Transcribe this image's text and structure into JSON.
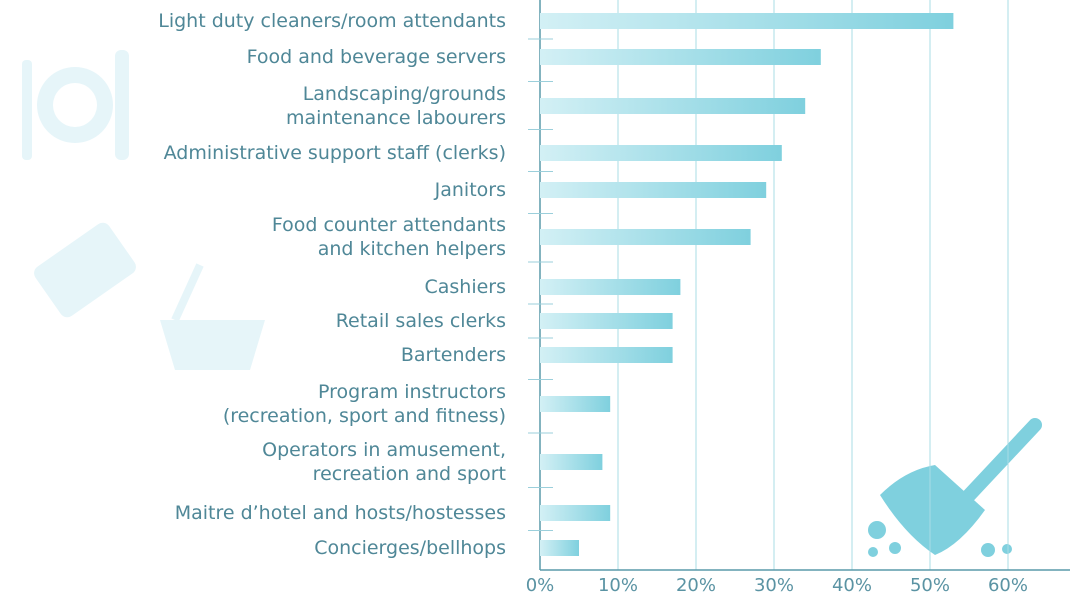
{
  "chart_data": {
    "type": "bar",
    "orientation": "horizontal",
    "categories": [
      "Light duty cleaners/room attendants",
      "Food and beverage servers",
      "Landscaping/grounds\nmaintenance labourers",
      "Administrative support staff (clerks)",
      "Janitors",
      "Food counter attendants\nand kitchen helpers",
      "Cashiers",
      "Retail sales clerks",
      "Bartenders",
      "Program instructors\n(recreation, sport and fitness)",
      "Operators in amusement,\nrecreation and sport",
      "Maitre d’hotel and hosts/hostesses",
      "Concierges/bellhops"
    ],
    "values": [
      53,
      36,
      34,
      31,
      29,
      27,
      18,
      17,
      17,
      9,
      8,
      9,
      5
    ],
    "color": "#7fd0de",
    "xlim": [
      0,
      68
    ],
    "xticks": [
      {
        "value": 0,
        "label": "0%"
      },
      {
        "value": 10,
        "label": "10%"
      },
      {
        "value": 20,
        "label": "20%"
      },
      {
        "value": 30,
        "label": "30%"
      },
      {
        "value": 40,
        "label": "40%"
      },
      {
        "value": 50,
        "label": "50%"
      },
      {
        "value": 60,
        "label": "60%"
      }
    ],
    "grid": true
  }
}
